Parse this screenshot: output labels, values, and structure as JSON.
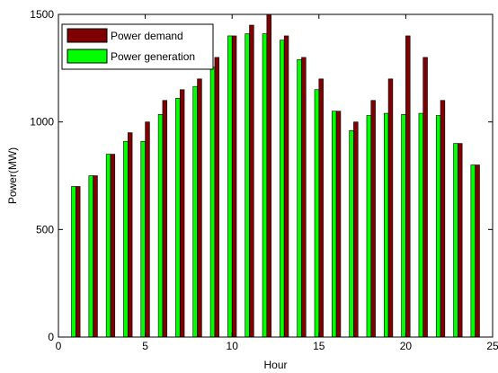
{
  "chart_data": {
    "type": "bar",
    "title": "",
    "xlabel": "Hour",
    "ylabel": "Power(MW)",
    "xlim": [
      0,
      25
    ],
    "ylim": [
      0,
      1500
    ],
    "xticks": [
      0,
      5,
      10,
      15,
      20,
      25
    ],
    "yticks": [
      0,
      500,
      1000,
      1500
    ],
    "grid": false,
    "legend_position": "top-left",
    "x": [
      1,
      2,
      3,
      4,
      5,
      6,
      7,
      8,
      9,
      10,
      11,
      12,
      13,
      14,
      15,
      16,
      17,
      18,
      19,
      20,
      21,
      22,
      23,
      24
    ],
    "series": [
      {
        "name": "Power demand",
        "color": "#7f0000",
        "values": [
          700,
          750,
          850,
          950,
          1000,
          1100,
          1150,
          1200,
          1300,
          1400,
          1450,
          1500,
          1400,
          1300,
          1200,
          1050,
          1000,
          1100,
          1200,
          1400,
          1300,
          1100,
          900,
          800
        ]
      },
      {
        "name": "Power generation",
        "color": "#00ff00",
        "values": [
          700,
          750,
          850,
          910,
          910,
          1035,
          1110,
          1165,
          1255,
          1400,
          1410,
          1410,
          1380,
          1290,
          1150,
          1050,
          960,
          1030,
          1040,
          1035,
          1040,
          1030,
          900,
          800
        ]
      }
    ]
  }
}
